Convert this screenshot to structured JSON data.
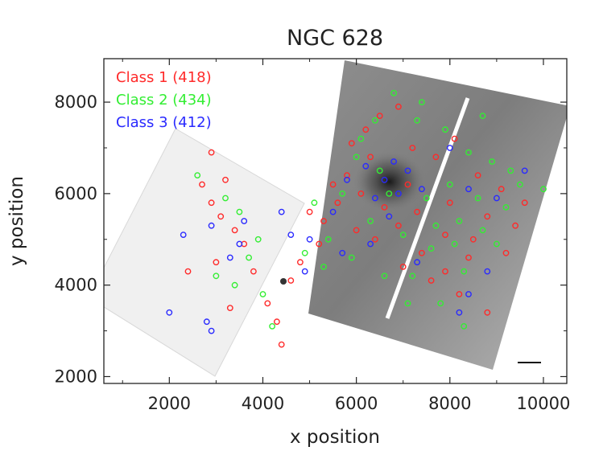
{
  "chart_data": {
    "type": "scatter",
    "title": "NGC 628",
    "xlabel": "x position",
    "ylabel": "y position",
    "xlim": [
      600,
      10500
    ],
    "ylim": [
      1850,
      8950
    ],
    "xticks": [
      2000,
      4000,
      6000,
      8000,
      10000
    ],
    "yticks": [
      2000,
      4000,
      6000,
      8000
    ],
    "series": [
      {
        "name": "Class 1 (418)",
        "color": "#ff2a2a",
        "points": [
          [
            2700,
            6200
          ],
          [
            2900,
            5800
          ],
          [
            3100,
            5500
          ],
          [
            3400,
            5200
          ],
          [
            3600,
            4900
          ],
          [
            3000,
            4500
          ],
          [
            3800,
            4300
          ],
          [
            4100,
            3600
          ],
          [
            4300,
            3200
          ],
          [
            4400,
            2700
          ],
          [
            2400,
            4300
          ],
          [
            3300,
            3500
          ],
          [
            6200,
            7400
          ],
          [
            6500,
            7700
          ],
          [
            6900,
            7900
          ],
          [
            7200,
            7000
          ],
          [
            7700,
            6800
          ],
          [
            8100,
            7200
          ],
          [
            8600,
            6400
          ],
          [
            9100,
            6100
          ],
          [
            8800,
            5500
          ],
          [
            9400,
            5300
          ],
          [
            8500,
            5000
          ],
          [
            7900,
            5100
          ],
          [
            7400,
            4700
          ],
          [
            7000,
            4400
          ],
          [
            7600,
            4100
          ],
          [
            8200,
            3800
          ],
          [
            8800,
            3400
          ],
          [
            6000,
            5200
          ],
          [
            5600,
            5800
          ],
          [
            5300,
            5400
          ],
          [
            5800,
            6400
          ],
          [
            6100,
            6000
          ],
          [
            6600,
            5700
          ],
          [
            6400,
            5000
          ],
          [
            6900,
            5300
          ],
          [
            7300,
            5600
          ],
          [
            7900,
            4300
          ],
          [
            8400,
            4600
          ],
          [
            9200,
            4700
          ],
          [
            9600,
            5800
          ],
          [
            6300,
            6800
          ],
          [
            5900,
            7100
          ],
          [
            5500,
            6200
          ],
          [
            5200,
            4900
          ],
          [
            4800,
            4500
          ],
          [
            4600,
            4100
          ],
          [
            2900,
            6900
          ],
          [
            3200,
            6300
          ],
          [
            5000,
            5600
          ],
          [
            7100,
            6200
          ],
          [
            8000,
            5800
          ]
        ]
      },
      {
        "name": "Class 2 (434)",
        "color": "#33ee33",
        "points": [
          [
            2600,
            6400
          ],
          [
            3200,
            5900
          ],
          [
            3500,
            5600
          ],
          [
            3900,
            5000
          ],
          [
            3000,
            4200
          ],
          [
            3400,
            4000
          ],
          [
            4000,
            3800
          ],
          [
            4200,
            3100
          ],
          [
            3700,
            4600
          ],
          [
            6400,
            7600
          ],
          [
            6800,
            8200
          ],
          [
            7300,
            7600
          ],
          [
            7900,
            7400
          ],
          [
            8400,
            6900
          ],
          [
            8900,
            6700
          ],
          [
            9500,
            6200
          ],
          [
            10000,
            6100
          ],
          [
            9200,
            5700
          ],
          [
            8700,
            5200
          ],
          [
            8200,
            5400
          ],
          [
            7600,
            4800
          ],
          [
            7200,
            4200
          ],
          [
            7800,
            3600
          ],
          [
            8300,
            3100
          ],
          [
            6000,
            6800
          ],
          [
            5700,
            6000
          ],
          [
            5400,
            5000
          ],
          [
            5900,
            4600
          ],
          [
            6300,
            5400
          ],
          [
            6700,
            6000
          ],
          [
            7000,
            5100
          ],
          [
            7500,
            5900
          ],
          [
            8000,
            6200
          ],
          [
            8600,
            5900
          ],
          [
            9000,
            4900
          ],
          [
            8300,
            4300
          ],
          [
            7100,
            3600
          ],
          [
            6600,
            4200
          ],
          [
            5300,
            4400
          ],
          [
            4900,
            4700
          ],
          [
            6100,
            7200
          ],
          [
            7400,
            8000
          ],
          [
            8700,
            7700
          ],
          [
            9300,
            6500
          ],
          [
            5100,
            5800
          ],
          [
            6500,
            6500
          ],
          [
            7700,
            5300
          ],
          [
            8100,
            4900
          ]
        ]
      },
      {
        "name": "Class 3 (412)",
        "color": "#2a2aff",
        "points": [
          [
            2300,
            5100
          ],
          [
            2900,
            5300
          ],
          [
            3300,
            4600
          ],
          [
            3500,
            4900
          ],
          [
            4400,
            5600
          ],
          [
            4600,
            5100
          ],
          [
            2000,
            3400
          ],
          [
            2800,
            3200
          ],
          [
            2900,
            3000
          ],
          [
            3600,
            5400
          ],
          [
            6600,
            6300
          ],
          [
            6900,
            6000
          ],
          [
            6400,
            5900
          ],
          [
            7100,
            6500
          ],
          [
            6200,
            6600
          ],
          [
            6800,
            6700
          ],
          [
            5800,
            6300
          ],
          [
            5500,
            5600
          ],
          [
            7400,
            6100
          ],
          [
            8000,
            7000
          ],
          [
            8400,
            6100
          ],
          [
            9000,
            5900
          ],
          [
            8800,
            4300
          ],
          [
            8400,
            3800
          ],
          [
            8200,
            3400
          ],
          [
            6300,
            4900
          ],
          [
            5700,
            4700
          ],
          [
            5000,
            5000
          ],
          [
            7300,
            4500
          ],
          [
            9600,
            6500
          ],
          [
            4900,
            4300
          ],
          [
            6700,
            5500
          ]
        ]
      }
    ],
    "legend": [
      {
        "label": "Class 1 (418)",
        "color": "#ff2a2a"
      },
      {
        "label": "Class 2 (434)",
        "color": "#33ee33"
      },
      {
        "label": "Class 3 (412)",
        "color": "#2a2aff"
      }
    ],
    "legend_position": "top-left",
    "grid": false,
    "background": "grayscale galaxy image with two rotated exposure fields"
  }
}
